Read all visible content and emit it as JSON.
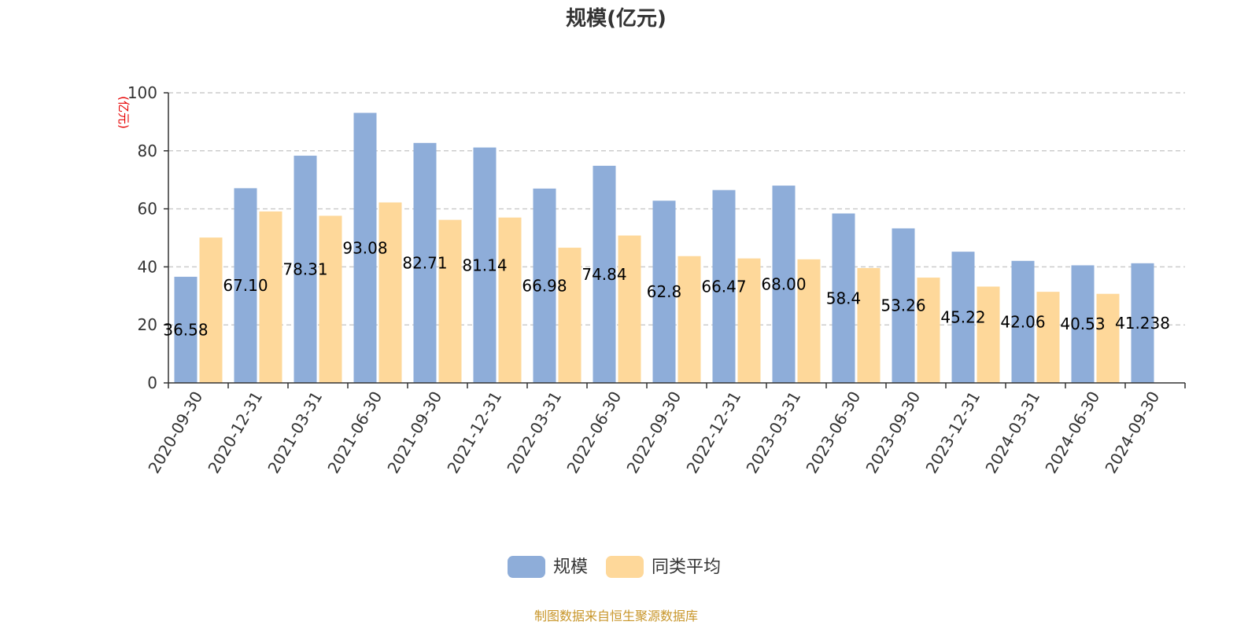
{
  "chart_data": {
    "type": "bar",
    "title": "规模(亿元)",
    "ylabel": "(亿元)",
    "ylim": [
      0,
      100
    ],
    "yticks": [
      0,
      20,
      40,
      60,
      80,
      100
    ],
    "grid": true,
    "legend_position": "bottom-center",
    "categories": [
      "2020-09-30",
      "2020-12-31",
      "2021-03-31",
      "2021-06-30",
      "2021-09-30",
      "2021-12-31",
      "2022-03-31",
      "2022-06-30",
      "2022-09-30",
      "2022-12-31",
      "2023-03-31",
      "2023-06-30",
      "2023-09-30",
      "2023-12-31",
      "2024-03-31",
      "2024-06-30",
      "2024-09-30"
    ],
    "series": [
      {
        "name": "规模",
        "color": "#8eadd9",
        "values": [
          36.58,
          67.1,
          78.31,
          93.08,
          82.71,
          81.14,
          66.98,
          74.84,
          62.8,
          66.47,
          68.0,
          58.4,
          53.26,
          45.22,
          42.06,
          40.53,
          41.238
        ],
        "labels": [
          "36.58",
          "67.10",
          "78.31",
          "93.08",
          "82.71",
          "81.14",
          "66.98",
          "74.84",
          "62.8",
          "66.47",
          "68.00",
          "58.4",
          "53.26",
          "45.22",
          "42.06",
          "40.53",
          "41.238"
        ]
      },
      {
        "name": "同类平均",
        "color": "#fed89a",
        "values": [
          50.1,
          59.1,
          57.6,
          62.2,
          56.2,
          57.0,
          46.6,
          50.8,
          43.7,
          42.9,
          42.6,
          39.6,
          36.3,
          33.2,
          31.4,
          30.7,
          null
        ]
      }
    ],
    "source": "制图数据来自恒生聚源数据库"
  }
}
